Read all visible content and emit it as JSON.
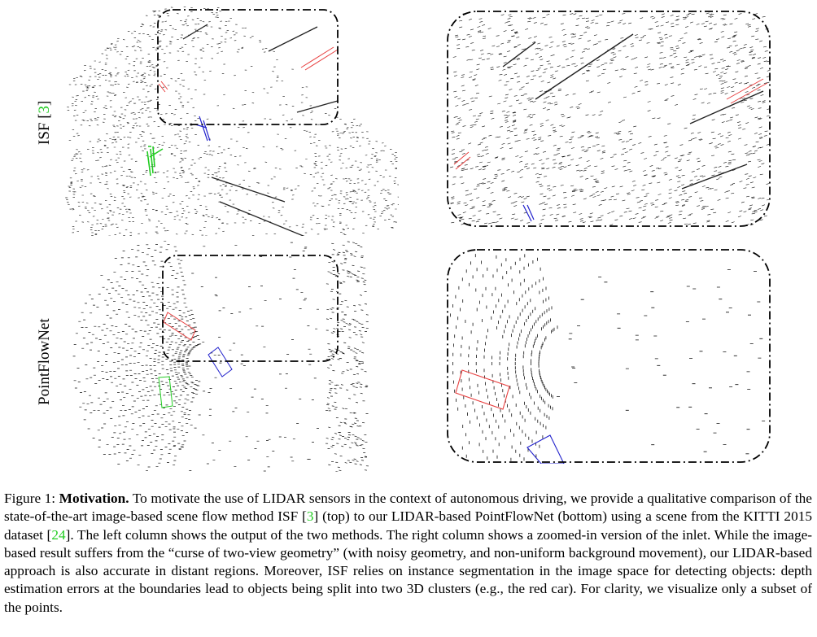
{
  "figure": {
    "rows": [
      {
        "label": "ISF",
        "cite_open": "[",
        "cite_num": "3",
        "cite_close": "]"
      },
      {
        "label": "PointFlowNet"
      }
    ],
    "colors": {
      "points": "#111111",
      "car_red": "#e84040",
      "car_blue": "#2222cc",
      "car_green": "#22cc22",
      "citation": "#22cc22"
    }
  },
  "caption": {
    "figure_label": "Figure 1:",
    "title": "Motivation.",
    "s1": "To motivate the use of LIDAR sensors in the context of autonomous driving, we provide a qualitative comparison of the state-of-the-art image-based scene flow method ISF",
    "ref1": "3",
    "s2": "(top) to our LIDAR-based PointFlowNet (bottom) using a scene from the KITTI 2015 dataset",
    "ref2": "24",
    "s3": ". The left column shows the output of the two methods. The right column shows a zoomed-in version of the inlet. While the image-based result suffers from the “curse of two-view geometry” (with noisy geometry, and non-uniform background movement), our LIDAR-based approach is also accurate in distant regions. Moreover, ISF relies on instance segmentation in the image space for detecting objects: depth estimation errors at the boundaries lead to objects being split into two 3D clusters (e.g., the red car). For clarity, we visualize only a subset of the points."
  }
}
